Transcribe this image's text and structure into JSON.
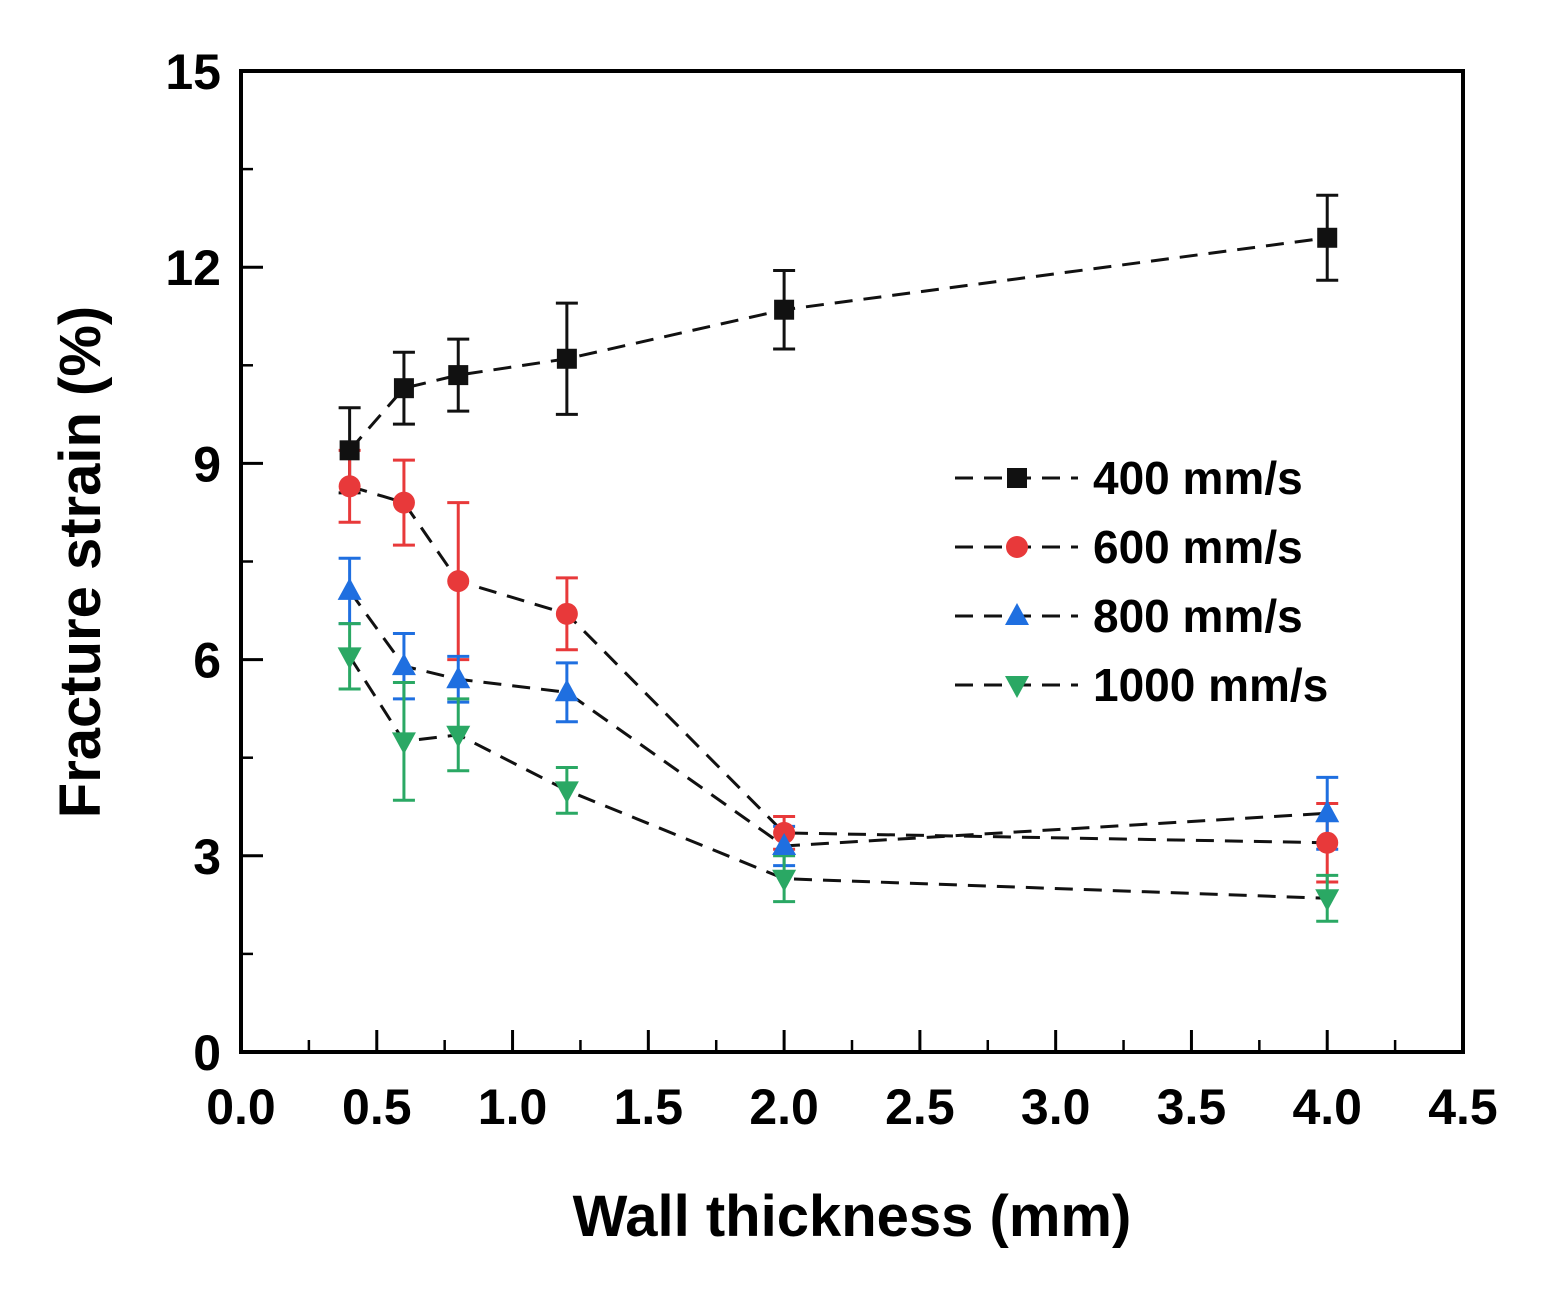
{
  "chart_data": {
    "type": "scatter",
    "title": "",
    "xlabel": "Wall thickness (mm)",
    "ylabel": "Fracture strain (%)",
    "xlim": [
      0.0,
      4.5
    ],
    "ylim": [
      0,
      15
    ],
    "xticks": [
      "0.0",
      "0.5",
      "1.0",
      "1.5",
      "2.0",
      "2.5",
      "3.0",
      "3.5",
      "4.0",
      "4.5"
    ],
    "yticks": [
      "0",
      "3",
      "6",
      "9",
      "12",
      "15"
    ],
    "x": [
      0.4,
      0.6,
      0.8,
      1.2,
      2.0,
      4.0
    ],
    "legend_position": "right",
    "series": [
      {
        "name": "400 mm/s",
        "color": "#111111",
        "marker": "square",
        "values": [
          9.2,
          10.15,
          10.35,
          10.6,
          11.35,
          12.45
        ],
        "errors": [
          0.65,
          0.55,
          0.55,
          0.85,
          0.6,
          0.65
        ]
      },
      {
        "name": "600 mm/s",
        "color": "#e8393a",
        "marker": "circle",
        "values": [
          8.65,
          8.4,
          7.2,
          6.7,
          3.35,
          3.2
        ],
        "errors": [
          0.55,
          0.65,
          1.2,
          0.55,
          0.25,
          0.6
        ]
      },
      {
        "name": "800 mm/s",
        "color": "#1f6fe0",
        "marker": "triangle-up",
        "values": [
          7.05,
          5.9,
          5.7,
          5.5,
          3.15,
          3.65
        ],
        "errors": [
          0.5,
          0.5,
          0.35,
          0.45,
          0.3,
          0.55
        ]
      },
      {
        "name": "1000 mm/s",
        "color": "#2aa864",
        "marker": "triangle-down",
        "values": [
          6.05,
          4.75,
          4.85,
          4.0,
          2.65,
          2.35
        ],
        "errors": [
          0.5,
          0.9,
          0.55,
          0.35,
          0.35,
          0.35
        ]
      }
    ]
  }
}
